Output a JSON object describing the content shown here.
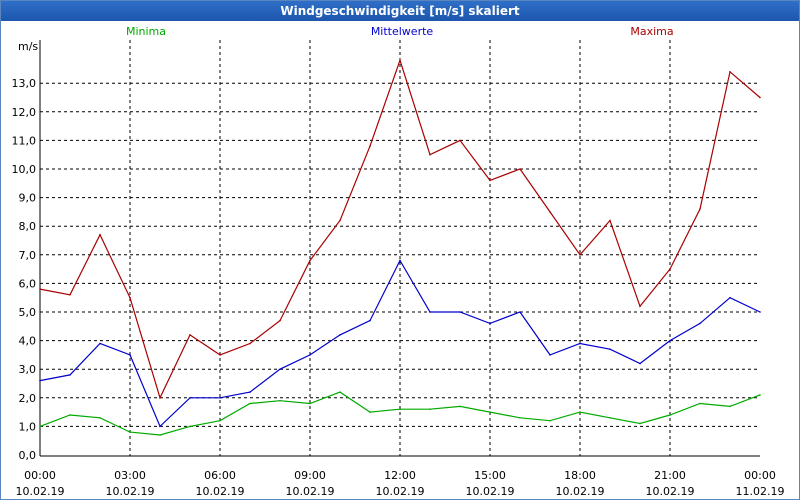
{
  "window": {
    "title": "Windgeschwindigkeit [m/s] skaliert"
  },
  "chart_data": {
    "type": "line",
    "title": "Windgeschwindigkeit [m/s] skaliert",
    "ylabel": "m/s",
    "xlabel": "",
    "ylim": [
      0,
      14
    ],
    "xlim_hours": [
      0,
      24
    ],
    "grid": true,
    "y_ticks": [
      "0,0",
      "1,0",
      "2,0",
      "3,0",
      "4,0",
      "5,0",
      "6,0",
      "7,0",
      "8,0",
      "9,0",
      "10,0",
      "11,0",
      "12,0",
      "13,0"
    ],
    "x_ticks": [
      {
        "time": "00:00",
        "date": "10.02.19"
      },
      {
        "time": "03:00",
        "date": "10.02.19"
      },
      {
        "time": "06:00",
        "date": "10.02.19"
      },
      {
        "time": "09:00",
        "date": "10.02.19"
      },
      {
        "time": "12:00",
        "date": "10.02.19"
      },
      {
        "time": "15:00",
        "date": "10.02.19"
      },
      {
        "time": "18:00",
        "date": "10.02.19"
      },
      {
        "time": "21:00",
        "date": "10.02.19"
      },
      {
        "time": "00:00",
        "date": "11.02.19"
      }
    ],
    "series": [
      {
        "name": "Minima",
        "color": "#00aa00",
        "x": [
          0,
          1,
          2,
          3,
          4,
          5,
          6,
          7,
          8,
          9,
          10,
          11,
          12,
          13,
          14,
          15,
          16,
          17,
          18,
          19,
          20,
          21,
          22,
          23,
          24
        ],
        "values": [
          1.0,
          1.4,
          1.3,
          0.8,
          0.7,
          1.0,
          1.2,
          1.8,
          1.9,
          1.8,
          2.2,
          1.5,
          1.6,
          1.6,
          1.7,
          1.5,
          1.3,
          1.2,
          1.5,
          1.3,
          1.1,
          1.4,
          1.8,
          1.7,
          2.1
        ]
      },
      {
        "name": "Mittelwerte",
        "color": "#0000cc",
        "x": [
          0,
          1,
          2,
          3,
          4,
          5,
          6,
          7,
          8,
          9,
          10,
          11,
          12,
          13,
          14,
          15,
          16,
          17,
          18,
          19,
          20,
          21,
          22,
          23,
          24
        ],
        "values": [
          2.6,
          2.8,
          3.9,
          3.5,
          1.0,
          2.0,
          2.0,
          2.2,
          3.0,
          3.5,
          4.2,
          4.7,
          6.8,
          5.0,
          5.0,
          4.6,
          5.0,
          3.5,
          3.9,
          3.7,
          3.2,
          4.0,
          4.6,
          5.5,
          5.0
        ]
      },
      {
        "name": "Maxima",
        "color": "#aa0000",
        "x": [
          0,
          1,
          2,
          3,
          4,
          5,
          6,
          7,
          8,
          9,
          10,
          11,
          12,
          13,
          14,
          15,
          16,
          17,
          18,
          19,
          20,
          21,
          22,
          23,
          24
        ],
        "values": [
          5.8,
          5.6,
          7.7,
          5.5,
          2.0,
          4.2,
          3.5,
          3.9,
          4.7,
          6.8,
          8.2,
          10.8,
          13.8,
          10.5,
          11.0,
          9.6,
          10.0,
          8.5,
          7.0,
          8.2,
          5.2,
          6.5,
          8.6,
          13.4,
          12.5
        ]
      }
    ]
  }
}
